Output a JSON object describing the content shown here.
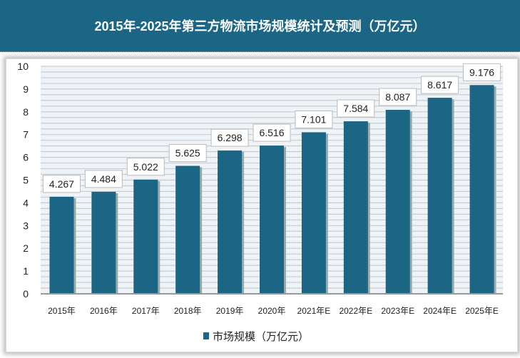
{
  "header": {
    "title": "2015年-2025年第三方物流市场规模统计及预测（万亿元）"
  },
  "chart_data": {
    "type": "bar",
    "title": "2015年-2025年第三方物流市场规模统计及预测（万亿元）",
    "categories": [
      "2015年",
      "2016年",
      "2017年",
      "2018年",
      "2019年",
      "2020年",
      "2021年E",
      "2022年E",
      "2023年E",
      "2024年E",
      "2025年E"
    ],
    "series": [
      {
        "name": "市场规模（万亿元）",
        "values": [
          4.267,
          4.484,
          5.022,
          5.625,
          6.298,
          6.516,
          7.101,
          7.584,
          8.087,
          8.617,
          9.176
        ]
      }
    ],
    "value_labels": [
      "4.267",
      "4.484",
      "5.022",
      "5.625",
      "6.298",
      "6.516",
      "7.101",
      "7.584",
      "8.087",
      "8.617",
      "9.176"
    ],
    "ylim": [
      0,
      10
    ],
    "yticks": [
      "0",
      "1",
      "2",
      "3",
      "4",
      "5",
      "6",
      "7",
      "8",
      "9",
      "10"
    ],
    "grid": true,
    "legend": "bottom",
    "bar_color": "#1b6585"
  }
}
